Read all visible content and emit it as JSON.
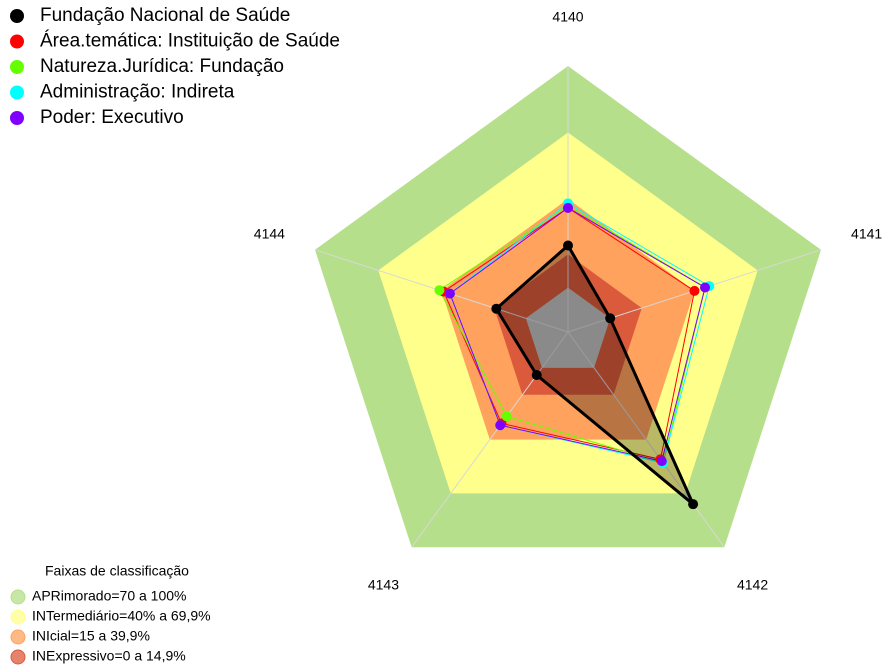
{
  "chart_data": {
    "type": "radar",
    "categories": [
      "4140",
      "4141",
      "4142",
      "4143",
      "4144"
    ],
    "ylim": [
      -20,
      100
    ],
    "series": [
      {
        "name": "Fundação Nacional de Saúde",
        "color": "#000000",
        "values": [
          19,
          0,
          76,
          4,
          14
        ]
      },
      {
        "name": "Área.temática: Instituição de Saúde",
        "color": "#ff0000",
        "values": [
          36,
          40,
          51,
          31,
          39
        ]
      },
      {
        "name": "Natureza.Jurídica: Fundação",
        "color": "#66ff00",
        "values": [
          37,
          45,
          53,
          27,
          41
        ]
      },
      {
        "name": "Administração: Indireta",
        "color": "#00ffff",
        "values": [
          38,
          47,
          53,
          32,
          36
        ]
      },
      {
        "name": "Poder: Executivo",
        "color": "#8000ff",
        "values": [
          36,
          45,
          52,
          32,
          36
        ]
      }
    ],
    "bands_title": "Faixas de classificação",
    "bands": [
      {
        "label": "APRimorado=70 a 100%",
        "color": "#b5df8a",
        "range": [
          70,
          100
        ]
      },
      {
        "label": "INTermediário=40% a 69,9%",
        "color": "#ffff8c",
        "range": [
          40,
          70
        ]
      },
      {
        "label": "INIcial=15 a 39,9%",
        "color": "#ffa25e",
        "range": [
          15,
          40
        ]
      },
      {
        "label": "INExpressivo=0 a 14,9%",
        "color": "#dc5a3c",
        "range": [
          0,
          15
        ]
      }
    ]
  }
}
